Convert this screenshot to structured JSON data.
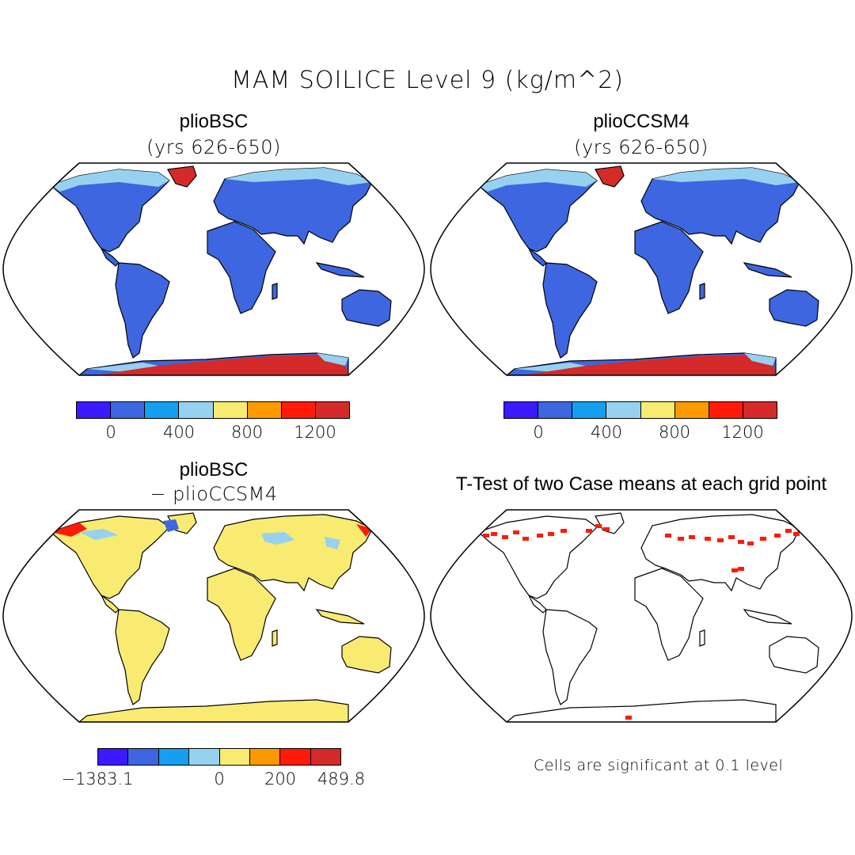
{
  "title": "MAM SOILICE Level 9 (kg/m^2)",
  "panels": [
    {
      "id": "p1",
      "title": "plioBSC",
      "subtitle": "(yrs 626-650)"
    },
    {
      "id": "p2",
      "title": "plioCCSM4",
      "subtitle": "(yrs 626-650)"
    },
    {
      "id": "p3",
      "title": "plioBSC",
      "subtitle": "− plioCCSM4"
    },
    {
      "id": "p4",
      "title": "T-Test of two Case means at each grid point",
      "subtitle": ""
    }
  ],
  "colorbars": {
    "top": {
      "colors": [
        "#3a1aff",
        "#3d66e0",
        "#169ef0",
        "#96d2f0",
        "#f9eb72",
        "#ff9900",
        "#ff1a0a",
        "#d42a2a"
      ],
      "ticks": [
        "0",
        "400",
        "800",
        "1200"
      ]
    },
    "diff": {
      "colors": [
        "#3a1aff",
        "#3d66e0",
        "#169ef0",
        "#96d2f0",
        "#f9eb72",
        "#ff9900",
        "#ff1a0a",
        "#d42a2a"
      ],
      "ticks": [
        "−1383.1",
        "0",
        "200",
        "489.8"
      ]
    }
  },
  "significance_note": "Cells are significant at 0.1 level",
  "colors": {
    "land_fill_p1": "#3d66e0",
    "land_fill_p3": "#f9eb72",
    "ice_high": "#d42a2a",
    "ice_medium": "#96d2f0",
    "significant": "#ff1a0a"
  }
}
